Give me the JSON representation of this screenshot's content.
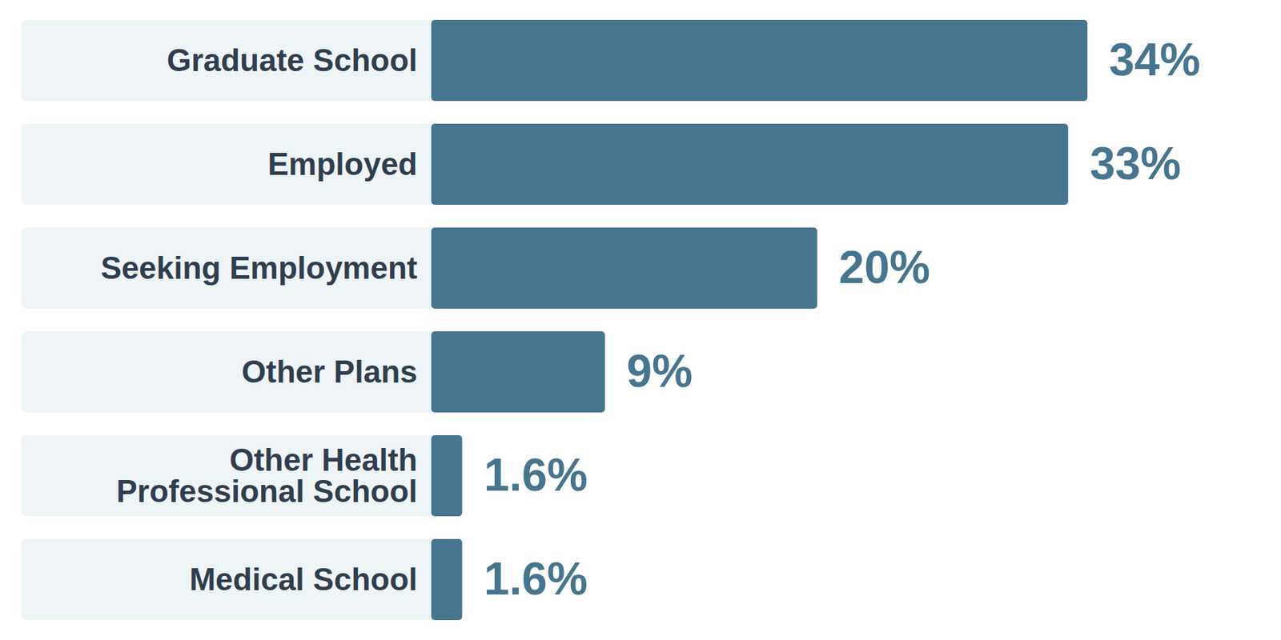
{
  "chart_data": {
    "type": "bar",
    "orientation": "horizontal",
    "categories": [
      "Graduate School",
      "Employed",
      "Seeking Employment",
      "Other Plans",
      "Other Health\nProfessional School",
      "Medical School"
    ],
    "values": [
      34,
      33,
      20,
      9,
      1.6,
      1.6
    ],
    "value_labels": [
      "34%",
      "33%",
      "20%",
      "9%",
      "1.6%",
      "1.6%"
    ],
    "color": "#46758f",
    "data_labels": true,
    "tick_labels": false
  }
}
